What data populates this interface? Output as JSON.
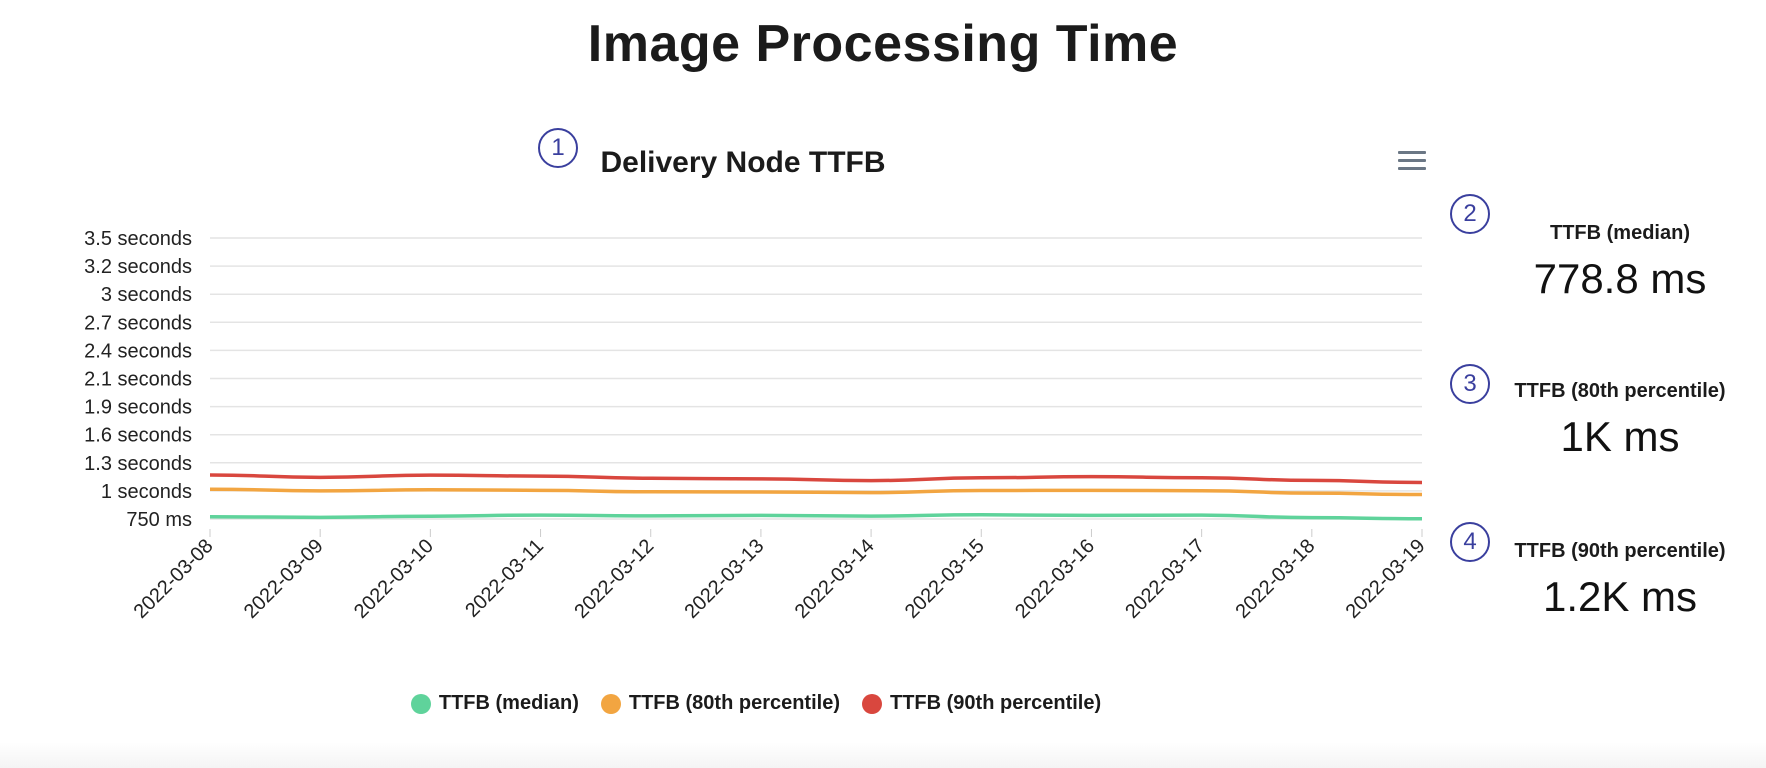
{
  "page": {
    "title": "Image Processing Time"
  },
  "callouts": [
    "1",
    "2",
    "3",
    "4"
  ],
  "menu": {
    "icon": "hamburger-menu-icon"
  },
  "stats": [
    {
      "label": "TTFB (median)",
      "value": "778.8 ms"
    },
    {
      "label": "TTFB (80th percentile)",
      "value": "1K ms"
    },
    {
      "label": "TTFB (90th percentile)",
      "value": "1.2K ms"
    }
  ],
  "chart_data": {
    "type": "line",
    "title": "Delivery Node TTFB",
    "xlabel": "",
    "ylabel": "",
    "categories": [
      "2022-03-08",
      "2022-03-09",
      "2022-03-10",
      "2022-03-11",
      "2022-03-12",
      "2022-03-13",
      "2022-03-14",
      "2022-03-15",
      "2022-03-16",
      "2022-03-17",
      "2022-03-18",
      "2022-03-19"
    ],
    "y_ticks": [
      {
        "value": 750,
        "label": "750 ms"
      },
      {
        "value": 1000,
        "label": "1 seconds"
      },
      {
        "value": 1300,
        "label": "1.3 seconds"
      },
      {
        "value": 1600,
        "label": "1.6 seconds"
      },
      {
        "value": 1900,
        "label": "1.9 seconds"
      },
      {
        "value": 2100,
        "label": "2.1 seconds"
      },
      {
        "value": 2400,
        "label": "2.4 seconds"
      },
      {
        "value": 2700,
        "label": "2.7 seconds"
      },
      {
        "value": 3000,
        "label": "3 seconds"
      },
      {
        "value": 3200,
        "label": "3.2 seconds"
      },
      {
        "value": 3500,
        "label": "3.5 seconds"
      }
    ],
    "series": [
      {
        "name": "TTFB (median)",
        "color": "#5fd39b",
        "values": [
          770,
          765,
          775,
          785,
          778,
          782,
          776,
          788,
          782,
          785,
          762,
          752
        ]
      },
      {
        "name": "TTFB (80th percentile)",
        "color": "#f2a541",
        "values": [
          1018,
          1000,
          1012,
          1006,
          992,
          990,
          985,
          1004,
          1006,
          1002,
          980,
          968
        ]
      },
      {
        "name": "TTFB (90th percentile)",
        "color": "#d9473e",
        "values": [
          1170,
          1145,
          1168,
          1158,
          1135,
          1128,
          1110,
          1140,
          1152,
          1140,
          1112,
          1090
        ]
      }
    ],
    "legend_position": "bottom",
    "grid": true
  }
}
